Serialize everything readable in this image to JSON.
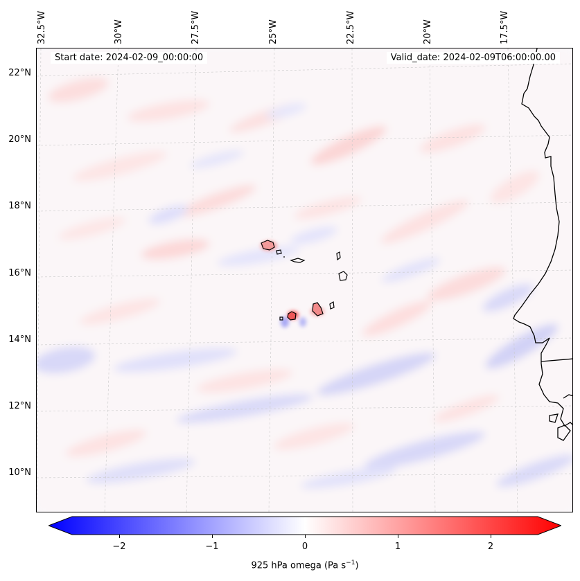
{
  "header": {
    "start_date": "Start date: 2024-02-09_00:00:00",
    "valid_date": "Valid_date: 2024-02-09T06:00:00.00"
  },
  "lon_labels": [
    "32.5°W",
    "30°W",
    "27.5°W",
    "25°W",
    "22.5°W",
    "20°W",
    "17.5°W"
  ],
  "lat_labels": [
    "22°N",
    "20°N",
    "18°N",
    "16°N",
    "14°N",
    "12°N",
    "10°N"
  ],
  "colorbar": {
    "ticks": [
      "−2",
      "−1",
      "0",
      "1",
      "2"
    ],
    "label_prefix": "925 hPa omega (Pa s",
    "label_exp": "−1",
    "label_suffix": ")",
    "min_color": "#0000ff",
    "mid_color": "#ffffff",
    "max_color": "#ff0000"
  },
  "colors": {
    "land_outline": "#000000",
    "gridline": "#bdbdbd"
  }
}
